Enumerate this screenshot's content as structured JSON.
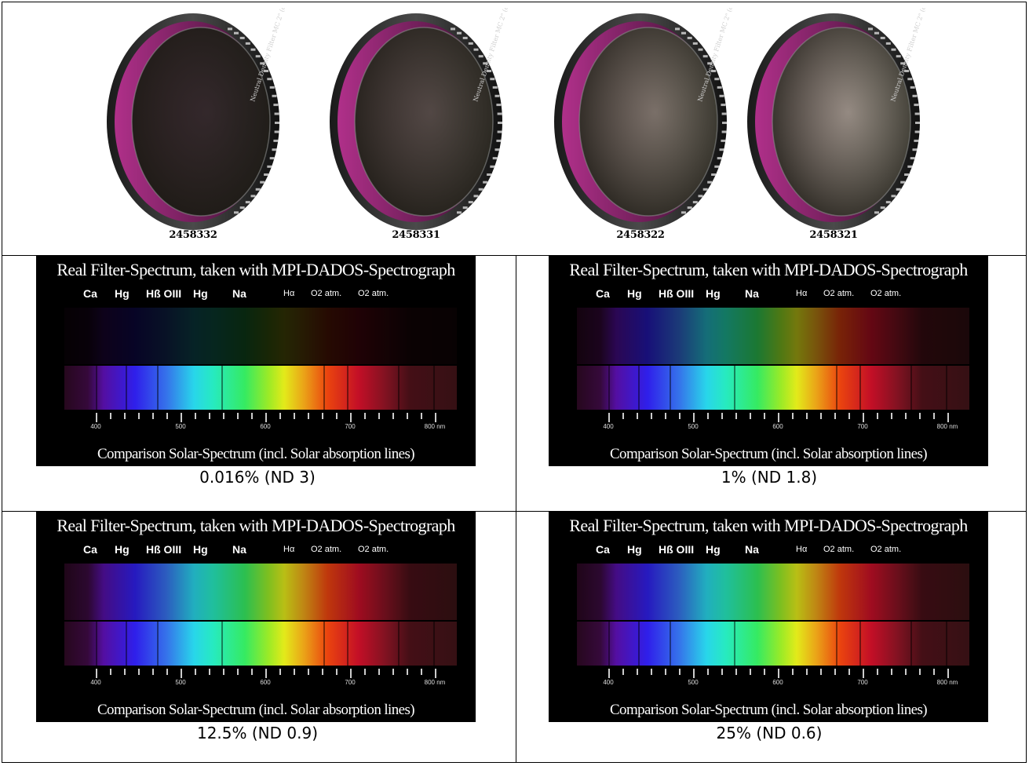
{
  "filters": [
    {
      "id": "2458332",
      "tint": "#2a2a24"
    },
    {
      "id": "2458331",
      "tint": "#4e4f42"
    },
    {
      "id": "2458322",
      "tint": "#7d7e6c"
    },
    {
      "id": "2458321",
      "tint": "#9c9d8a"
    }
  ],
  "ring_text": "Neutral Density Filter MC 2\" (optically po",
  "spectrum": {
    "title": "Real Filter-Spectrum, taken with MPI-DADOS-Spectrograph",
    "footer": "Comparison Solar-Spectrum (incl. Solar absorption lines)",
    "elements": [
      "Ca",
      "Hg",
      "Hß OIII",
      "Hg",
      "Na",
      "Hα",
      "O2 atm.",
      "O2 atm."
    ],
    "tick_labels": [
      "400",
      "500",
      "600",
      "700",
      "800 nm"
    ]
  },
  "panels": [
    {
      "caption": "0.016% (ND 3)",
      "transmission": 0.016
    },
    {
      "caption": "1% (ND 1.8)",
      "transmission": 1
    },
    {
      "caption": "12.5% (ND 0.9)",
      "transmission": 12.5
    },
    {
      "caption": "25% (ND 0.6)",
      "transmission": 25
    }
  ]
}
